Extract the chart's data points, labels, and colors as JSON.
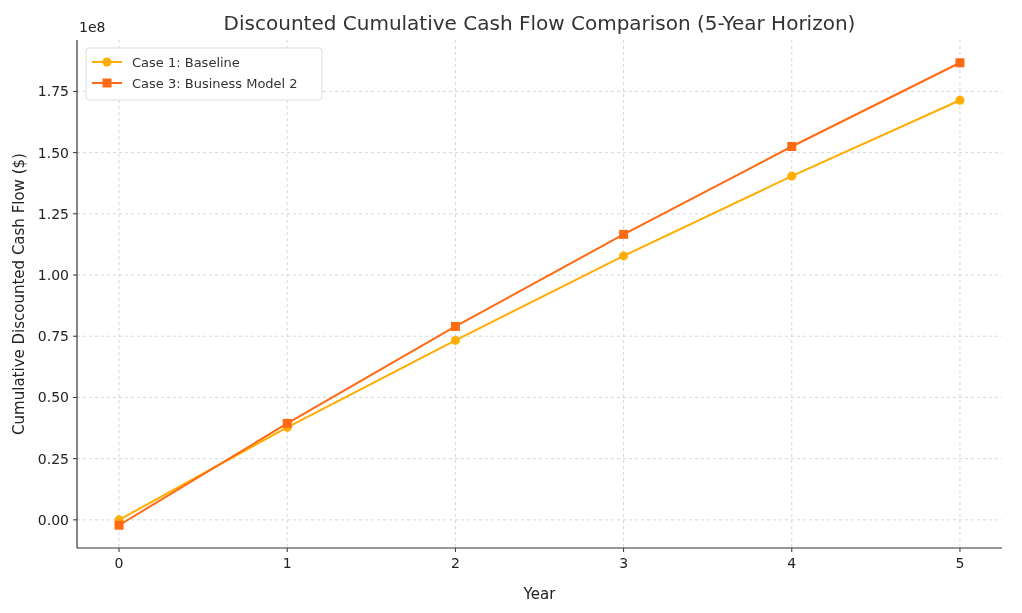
{
  "chart_data": {
    "type": "line",
    "title": "Discounted Cumulative Cash Flow Comparison (5-Year Horizon)",
    "xlabel": "Year",
    "ylabel": "Cumulative Discounted Cash Flow ($)",
    "annotations": [
      "1e8"
    ],
    "x": [
      0,
      1,
      2,
      3,
      4,
      5
    ],
    "series": [
      {
        "name": "Case 1: Baseline",
        "color": "#ffad00",
        "marker": "circle",
        "values": [
          0,
          0.378,
          0.733,
          1.078,
          1.404,
          1.714
        ]
      },
      {
        "name": "Case 3: Business Model 2",
        "color": "#ff6a13",
        "marker": "square",
        "values": [
          -0.022,
          0.394,
          0.79,
          1.166,
          1.525,
          1.867
        ]
      }
    ],
    "xlim": [
      -0.25,
      5.25
    ],
    "xticks": [
      0,
      1,
      2,
      3,
      4,
      5
    ],
    "ylim": [
      -0.115,
      1.96
    ],
    "yticks": [
      {
        "value": 0,
        "label": "0.00"
      },
      {
        "value": 0.25,
        "label": "0.25"
      },
      {
        "value": 0.5,
        "label": "0.50"
      },
      {
        "value": 0.75,
        "label": "0.75"
      },
      {
        "value": 1,
        "label": "1.00"
      },
      {
        "value": 1.25,
        "label": "1.25"
      },
      {
        "value": 1.5,
        "label": "1.50"
      },
      {
        "value": 1.75,
        "label": "1.75"
      }
    ],
    "grid": true,
    "legend": "top left",
    "line_style": "solid"
  }
}
